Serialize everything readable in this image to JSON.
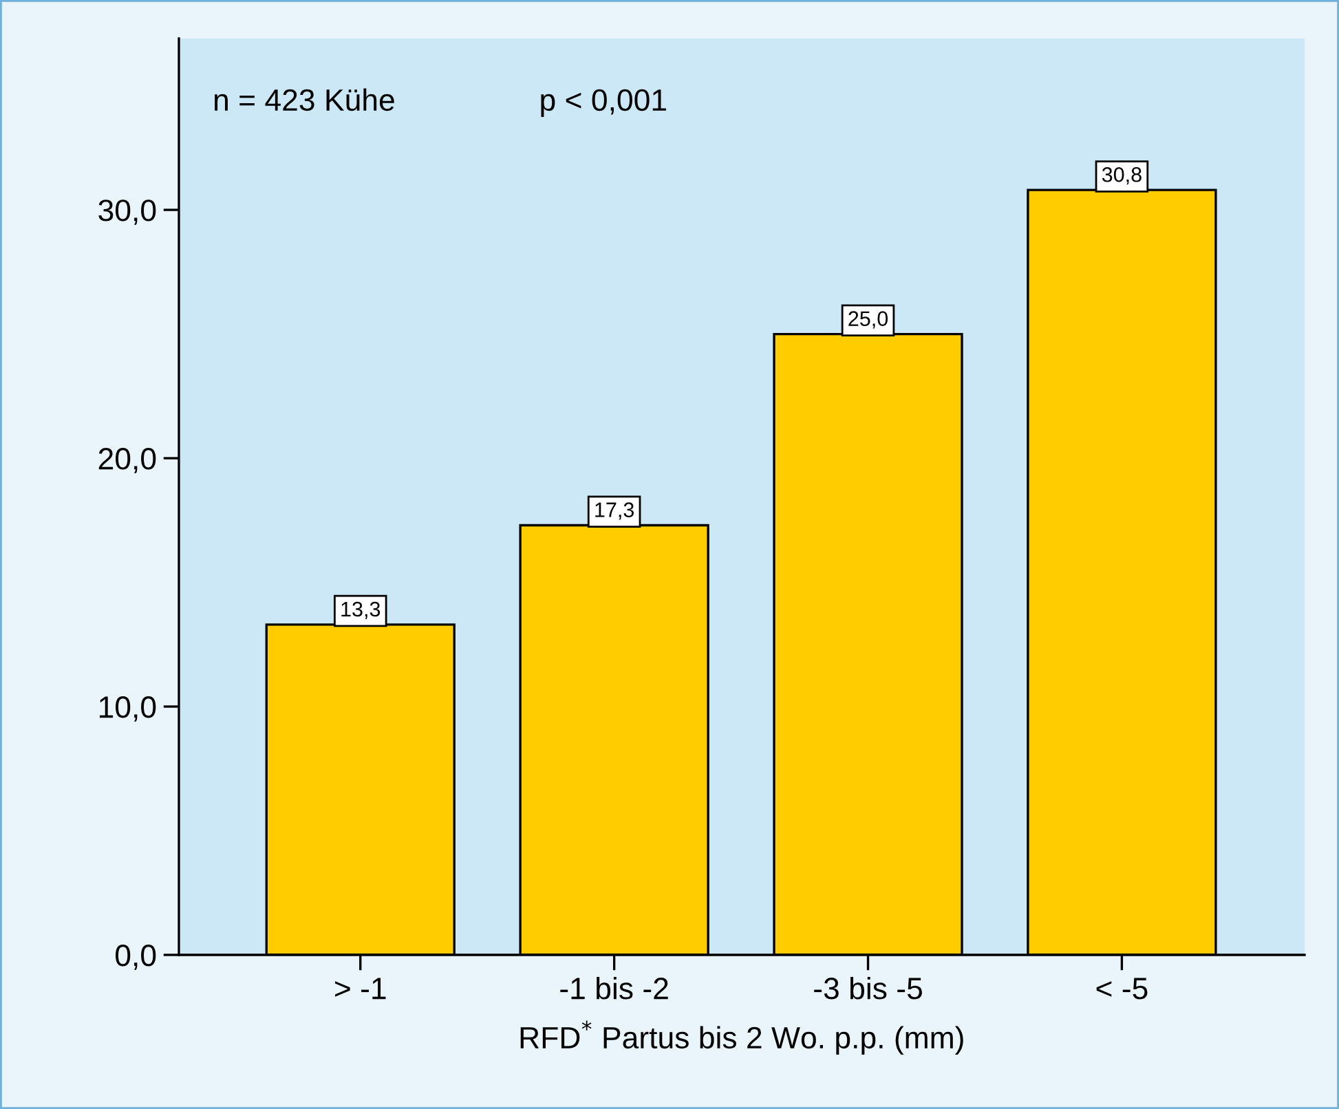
{
  "chart_data": {
    "type": "bar",
    "categories": [
      "> -1",
      "-1 bis -2",
      "-3 bis -5",
      "< -5"
    ],
    "values": [
      13.3,
      17.3,
      25.0,
      30.8
    ],
    "value_labels": [
      "13,3",
      "17,3",
      "25,0",
      "30,8"
    ],
    "color": "#ffcc00",
    "xlabel": "RFD$^{*}$ Partus bis 2 Wo. p.p. (mm)",
    "annotations": [
      "n = 423 Kühe",
      "p < 0,001"
    ],
    "ylim": [
      0,
      36.9
    ],
    "yticks": [
      {
        "value": 0,
        "label": "0,0"
      },
      {
        "value": 10,
        "label": "10,0"
      },
      {
        "value": 20,
        "label": "20,0"
      },
      {
        "value": 30,
        "label": "30,0"
      }
    ],
    "grid": false,
    "legend": false
  }
}
